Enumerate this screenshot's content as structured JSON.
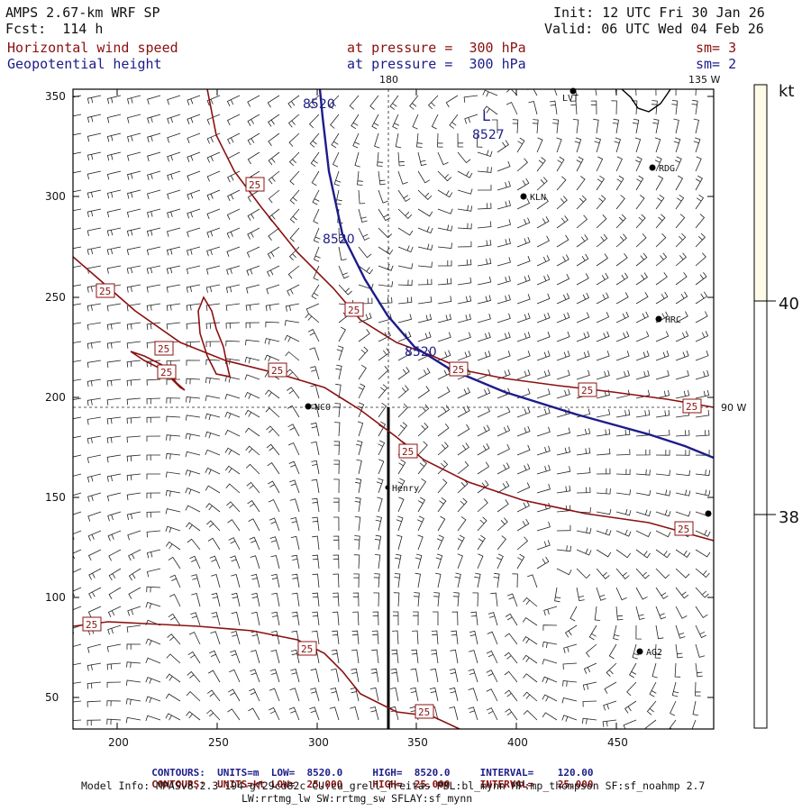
{
  "header": {
    "model": "AMPS 2.67-km WRF SP",
    "forecast": "Fcst:  114 h",
    "init": "Init: 12 UTC Fri 30 Jan 26",
    "valid": "Valid: 06 UTC Wed 04 Feb 26",
    "field1": "Horizontal wind speed",
    "field2": "Geopotential height",
    "level1": "at pressure =  300 hPa",
    "level2": "at pressure =  300 hPa",
    "sm1": "sm= 3",
    "sm2": "sm= 2"
  },
  "map": {
    "x_ticks": [
      "200",
      "250",
      "300",
      "350",
      "400",
      "450"
    ],
    "y_ticks": [
      "350",
      "300",
      "250",
      "200",
      "150",
      "100",
      "50"
    ],
    "meridian_labels": [
      "180",
      "135 W",
      "90 W"
    ],
    "stations": [
      "LVT",
      "RDG",
      "KLN",
      "HRC",
      "NCO",
      "Henry",
      "AG2"
    ],
    "speed_contour_label": "25",
    "height_labels": [
      "8520",
      "8520",
      "8520",
      "8527"
    ],
    "low_marker": "L"
  },
  "colorbar": {
    "unit": "kt",
    "labels": [
      "40",
      "38"
    ],
    "fill_color": "#fdfbe8"
  },
  "colors": {
    "speed_contour": "#8b1010",
    "height_contour": "#1c1c8a"
  },
  "footer": {
    "row1": [
      "CONTOURS:",
      "UNITS=m",
      "LOW=",
      "8520.0",
      "HIGH=",
      "8520.0",
      "INTERVAL=",
      "120.00"
    ],
    "row2": [
      "CONTOURS:",
      "UNITS=kt",
      "LOW=",
      "25.000",
      "HIGH=",
      "25.000",
      "INTERVAL=",
      "25.000"
    ],
    "model_info_1": "Model Info: MPASv8.2.3-194-gf29cd82c CU:cu_grell_freitas PBL:bl_mynn MP:mp_thompson SF:sf_noahmp 2.7",
    "model_info_2": "LW:rrtmg_lw SW:rrtmg_sw SFLAY:sf_mynn"
  }
}
